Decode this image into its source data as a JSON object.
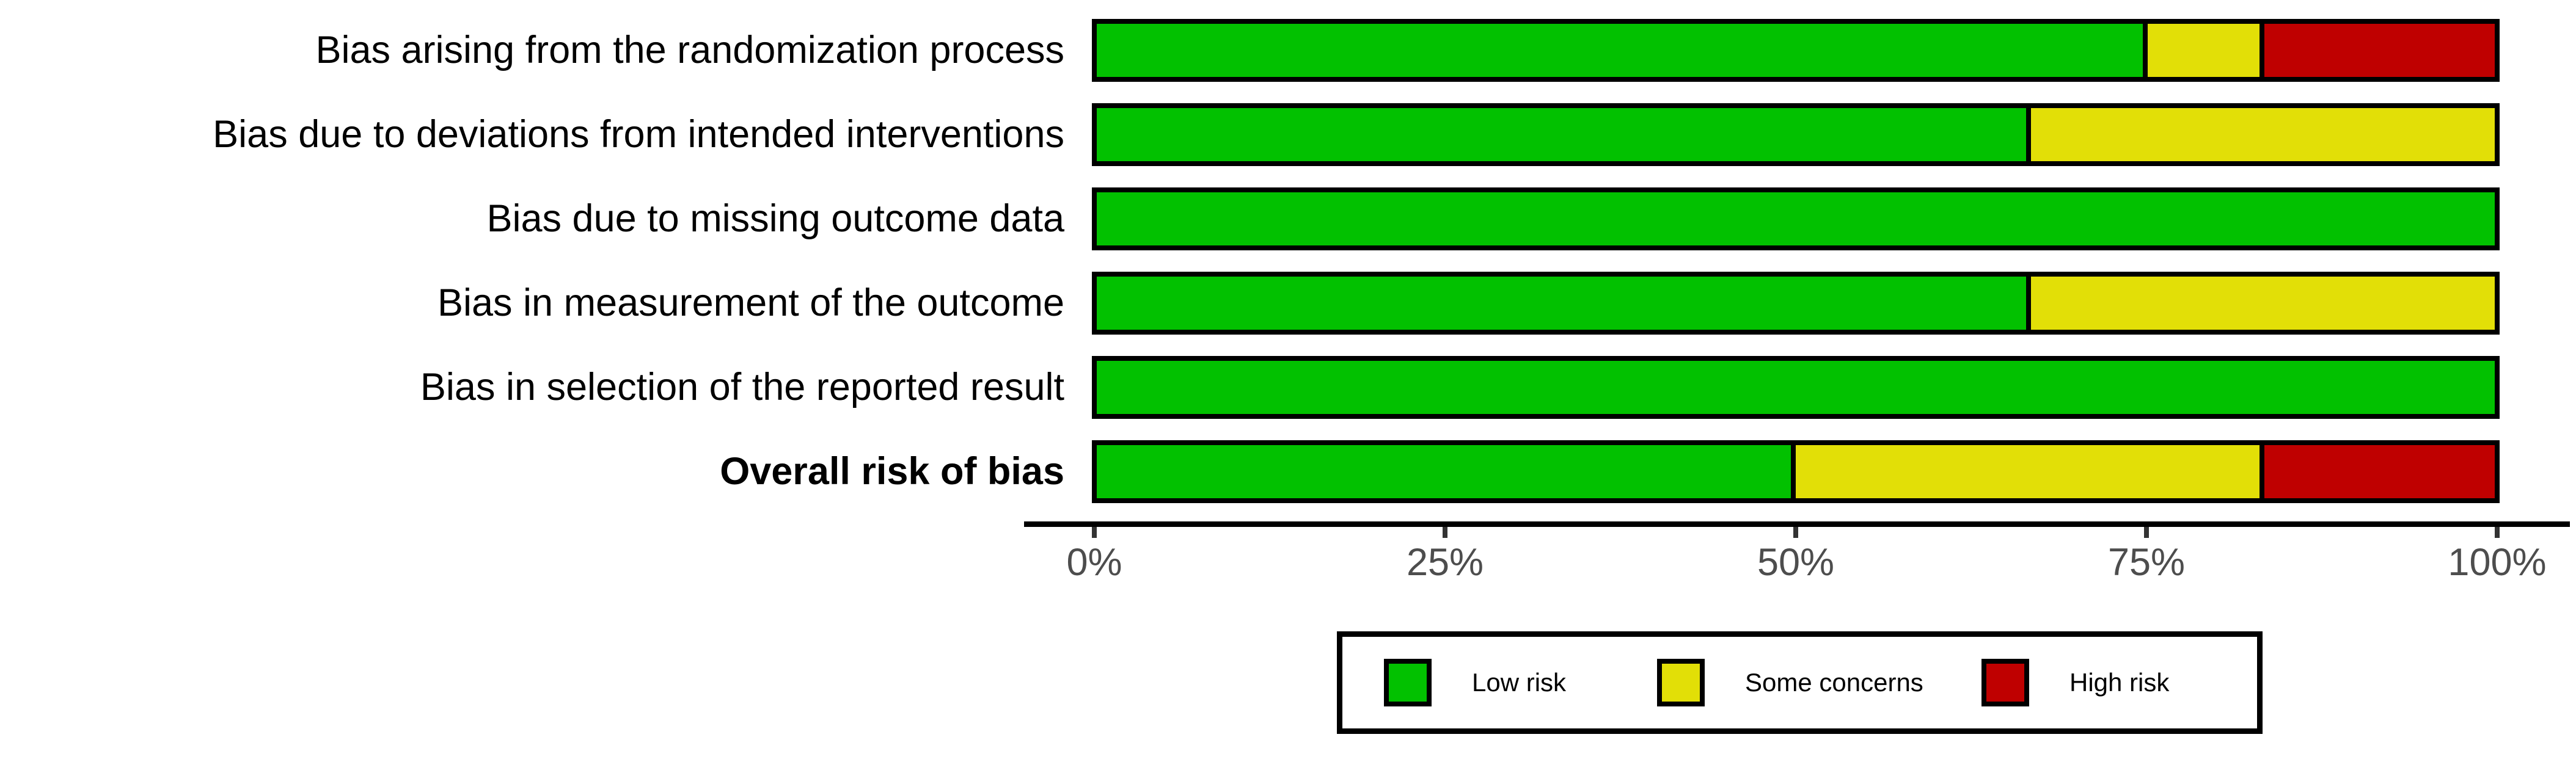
{
  "chart_data": {
    "type": "bar",
    "orientation": "horizontal_stacked",
    "title": "",
    "categories": [
      "Bias arising from the randomization process",
      "Bias due to deviations from intended interventions",
      "Bias due to missing outcome data",
      "Bias in measurement of the outcome",
      "Bias in selection of the reported result",
      "Overall risk of bias"
    ],
    "bold_categories": [
      "Overall risk of bias"
    ],
    "series": [
      {
        "name": "Low risk",
        "key": "low-risk",
        "color": "#02C100",
        "values": [
          75,
          66.7,
          100,
          66.7,
          100,
          50
        ]
      },
      {
        "name": "Some concerns",
        "key": "some-concerns",
        "color": "#E2DF07",
        "values": [
          8.3,
          33.3,
          0,
          33.3,
          0,
          33.3
        ]
      },
      {
        "name": "High risk",
        "key": "high-risk",
        "color": "#BF0000",
        "values": [
          16.7,
          0,
          0,
          0,
          0,
          16.7
        ]
      }
    ],
    "x_axis": {
      "range": [
        0,
        100
      ],
      "tick_labels": [
        "0%",
        "25%",
        "50%",
        "75%",
        "100%"
      ],
      "unit": "percent"
    },
    "legend": {
      "position": "bottom"
    },
    "grid": false
  }
}
